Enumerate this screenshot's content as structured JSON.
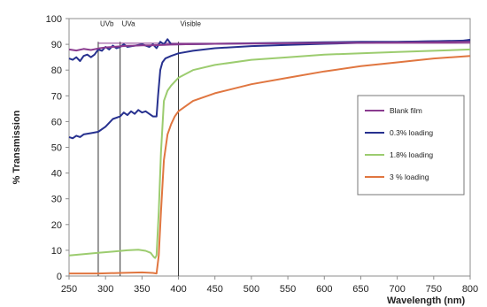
{
  "chart_data": {
    "type": "line",
    "title": "",
    "xlabel": "Wavelength (nm)",
    "ylabel": "% Transmission",
    "xlim": [
      250,
      800
    ],
    "ylim": [
      0,
      100
    ],
    "xticks": [
      250,
      300,
      350,
      400,
      450,
      500,
      550,
      600,
      650,
      700,
      750,
      800
    ],
    "yticks": [
      0,
      10,
      20,
      30,
      40,
      50,
      60,
      70,
      80,
      90,
      100
    ],
    "grid": false,
    "legend_position": "right",
    "vlines": [
      {
        "x": 290,
        "label": "UVb"
      },
      {
        "x": 320,
        "label": "UVa"
      },
      {
        "x": 400,
        "label": "Visible"
      }
    ],
    "series": [
      {
        "name": "Blank film",
        "color": "#8a3b8f",
        "points": [
          [
            250,
            88
          ],
          [
            260,
            87.6
          ],
          [
            270,
            88.2
          ],
          [
            280,
            87.8
          ],
          [
            290,
            88.4
          ],
          [
            300,
            88.8
          ],
          [
            310,
            89
          ],
          [
            320,
            89.2
          ],
          [
            330,
            89.4
          ],
          [
            340,
            89.5
          ],
          [
            350,
            89.6
          ],
          [
            360,
            89.6
          ],
          [
            370,
            89.7
          ],
          [
            380,
            89.8
          ],
          [
            390,
            89.9
          ],
          [
            400,
            90
          ],
          [
            450,
            90.2
          ],
          [
            500,
            90.3
          ],
          [
            550,
            90.4
          ],
          [
            600,
            90.5
          ],
          [
            650,
            90.6
          ],
          [
            700,
            90.7
          ],
          [
            750,
            90.8
          ],
          [
            800,
            91
          ]
        ]
      },
      {
        "name": "0.3% loading",
        "color": "#27318f",
        "points": [
          [
            250,
            84.5
          ],
          [
            255,
            84
          ],
          [
            260,
            85
          ],
          [
            265,
            83.5
          ],
          [
            270,
            85.5
          ],
          [
            275,
            86
          ],
          [
            280,
            85
          ],
          [
            285,
            86
          ],
          [
            290,
            88
          ],
          [
            295,
            87.5
          ],
          [
            300,
            89
          ],
          [
            305,
            88
          ],
          [
            310,
            89.5
          ],
          [
            315,
            88.5
          ],
          [
            320,
            89
          ],
          [
            325,
            90
          ],
          [
            330,
            89
          ],
          [
            340,
            89.5
          ],
          [
            350,
            90
          ],
          [
            360,
            89
          ],
          [
            365,
            90
          ],
          [
            370,
            88.5
          ],
          [
            375,
            91
          ],
          [
            380,
            90
          ],
          [
            385,
            92
          ],
          [
            390,
            90
          ],
          [
            400,
            90
          ],
          [
            450,
            90.2
          ],
          [
            500,
            90.4
          ],
          [
            550,
            90.6
          ],
          [
            600,
            90.8
          ],
          [
            650,
            91
          ],
          [
            700,
            91
          ],
          [
            750,
            91.2
          ],
          [
            780,
            91
          ],
          [
            800,
            91.8
          ]
        ]
      },
      {
        "name": "1.8% loading",
        "color": "#9ccc6f",
        "points": [
          [
            250,
            8
          ],
          [
            270,
            8.5
          ],
          [
            290,
            9
          ],
          [
            310,
            9.5
          ],
          [
            330,
            10
          ],
          [
            345,
            10.2
          ],
          [
            355,
            9.8
          ],
          [
            362,
            9
          ],
          [
            366,
            7.5
          ],
          [
            368,
            7
          ],
          [
            370,
            8
          ],
          [
            373,
            25
          ],
          [
            376,
            48
          ],
          [
            380,
            68
          ],
          [
            385,
            72
          ],
          [
            390,
            74
          ],
          [
            400,
            77
          ],
          [
            420,
            80
          ],
          [
            450,
            82
          ],
          [
            500,
            84
          ],
          [
            550,
            85
          ],
          [
            600,
            86
          ],
          [
            650,
            86.5
          ],
          [
            700,
            87
          ],
          [
            750,
            87.5
          ],
          [
            800,
            88
          ]
        ]
      },
      {
        "name": "3 % loading",
        "color": "#e07640",
        "points": [
          [
            250,
            1
          ],
          [
            290,
            1
          ],
          [
            320,
            1.2
          ],
          [
            350,
            1.4
          ],
          [
            365,
            1.2
          ],
          [
            370,
            1
          ],
          [
            373,
            8
          ],
          [
            376,
            25
          ],
          [
            380,
            45
          ],
          [
            385,
            55
          ],
          [
            390,
            59
          ],
          [
            395,
            62
          ],
          [
            400,
            64
          ],
          [
            420,
            68
          ],
          [
            450,
            71
          ],
          [
            500,
            74.5
          ],
          [
            550,
            77
          ],
          [
            600,
            79.5
          ],
          [
            650,
            81.5
          ],
          [
            700,
            83
          ],
          [
            750,
            84.5
          ],
          [
            800,
            85.5
          ]
        ]
      },
      {
        "name": "",
        "color": "#27318f",
        "points": [
          [
            250,
            54
          ],
          [
            255,
            53.5
          ],
          [
            260,
            54.5
          ],
          [
            265,
            54
          ],
          [
            270,
            55
          ],
          [
            280,
            55.5
          ],
          [
            290,
            56
          ],
          [
            300,
            58
          ],
          [
            310,
            61
          ],
          [
            320,
            62
          ],
          [
            325,
            63.5
          ],
          [
            330,
            62.5
          ],
          [
            335,
            64
          ],
          [
            340,
            63
          ],
          [
            345,
            64.5
          ],
          [
            350,
            63.5
          ],
          [
            355,
            64
          ],
          [
            360,
            63
          ],
          [
            365,
            62
          ],
          [
            368,
            62
          ],
          [
            370,
            62
          ],
          [
            372,
            70
          ],
          [
            375,
            80
          ],
          [
            378,
            83
          ],
          [
            382,
            84.5
          ],
          [
            390,
            85.5
          ],
          [
            400,
            86.5
          ],
          [
            420,
            87.5
          ],
          [
            450,
            88.5
          ],
          [
            500,
            89.3
          ],
          [
            550,
            89.8
          ],
          [
            600,
            90.2
          ],
          [
            650,
            90.6
          ],
          [
            700,
            90.9
          ],
          [
            750,
            91.2
          ],
          [
            800,
            91.5
          ]
        ]
      }
    ]
  }
}
